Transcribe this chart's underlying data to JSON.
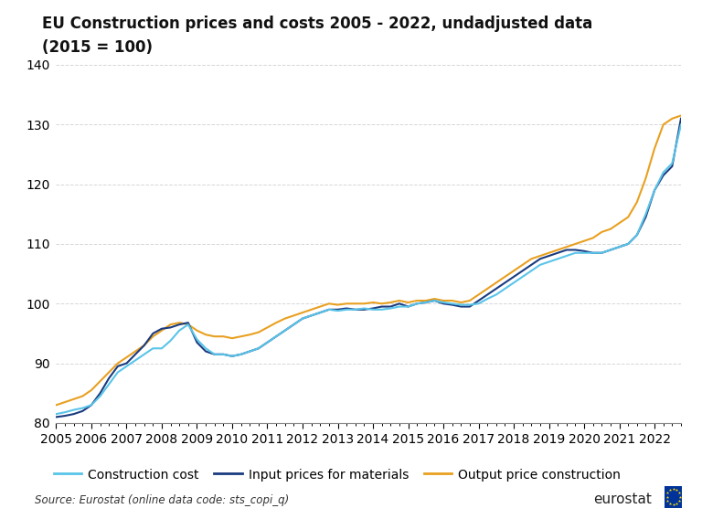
{
  "title_line1": "EU Construction prices and costs 2005 - 2022, undadjusted data",
  "title_line2": "(2015 = 100)",
  "source": "Source: Eurostat (online data code: sts_copi_q)",
  "ylim": [
    80,
    140
  ],
  "yticks": [
    80,
    90,
    100,
    110,
    120,
    130,
    140
  ],
  "construction_cost_color": "#59C4E8",
  "input_prices_color": "#1A3B80",
  "output_price_color": "#E8A020",
  "background_color": "#ffffff",
  "grid_color": "#cccccc",
  "title_fontsize": 12,
  "label_fontsize": 10,
  "tick_fontsize": 10,
  "legend_labels": [
    "Construction cost",
    "Input prices for materials",
    "Output price construction"
  ],
  "x_years": [
    2005,
    2006,
    2007,
    2008,
    2009,
    2010,
    2011,
    2012,
    2013,
    2014,
    2015,
    2016,
    2017,
    2018,
    2019,
    2020,
    2021,
    2022
  ],
  "construction_cost_q": [
    81.5,
    81.8,
    82.2,
    82.5,
    83.0,
    84.5,
    86.5,
    88.5,
    89.5,
    90.5,
    91.5,
    92.5,
    92.5,
    93.8,
    95.5,
    96.5,
    94.0,
    92.5,
    91.5,
    91.5,
    91.2,
    91.5,
    92.0,
    92.5,
    93.5,
    94.5,
    95.5,
    96.5,
    97.5,
    98.0,
    98.5,
    99.0,
    98.8,
    99.0,
    99.0,
    99.2,
    99.0,
    99.0,
    99.2,
    99.5,
    99.5,
    100.0,
    100.2,
    100.5,
    100.2,
    100.0,
    99.8,
    99.8,
    100.0,
    100.8,
    101.5,
    102.5,
    103.5,
    104.5,
    105.5,
    106.5,
    107.0,
    107.5,
    108.0,
    108.5,
    108.5,
    108.5,
    108.5,
    109.0,
    109.5,
    110.0,
    111.5,
    115.0,
    119.0,
    122.0,
    123.5,
    130.0
  ],
  "input_prices_q": [
    81.0,
    81.2,
    81.5,
    82.0,
    83.0,
    85.0,
    87.5,
    89.5,
    90.0,
    91.5,
    93.0,
    95.0,
    95.8,
    96.0,
    96.5,
    96.8,
    93.5,
    92.0,
    91.5,
    91.5,
    91.2,
    91.5,
    92.0,
    92.5,
    93.5,
    94.5,
    95.5,
    96.5,
    97.5,
    98.0,
    98.5,
    99.0,
    99.0,
    99.2,
    99.0,
    99.0,
    99.2,
    99.5,
    99.5,
    100.0,
    99.5,
    100.0,
    100.2,
    100.5,
    100.0,
    99.8,
    99.5,
    99.5,
    100.5,
    101.5,
    102.5,
    103.5,
    104.5,
    105.5,
    106.5,
    107.5,
    108.0,
    108.5,
    109.0,
    109.0,
    108.8,
    108.5,
    108.5,
    109.0,
    109.5,
    110.0,
    111.5,
    114.5,
    119.0,
    121.5,
    123.0,
    131.0
  ],
  "output_price_q": [
    83.0,
    83.5,
    84.0,
    84.5,
    85.5,
    87.0,
    88.5,
    90.0,
    91.0,
    92.0,
    93.0,
    94.5,
    95.5,
    96.5,
    96.8,
    96.5,
    95.5,
    94.8,
    94.5,
    94.5,
    94.2,
    94.5,
    94.8,
    95.2,
    96.0,
    96.8,
    97.5,
    98.0,
    98.5,
    99.0,
    99.5,
    100.0,
    99.8,
    100.0,
    100.0,
    100.0,
    100.2,
    100.0,
    100.2,
    100.5,
    100.2,
    100.5,
    100.5,
    100.8,
    100.5,
    100.5,
    100.2,
    100.5,
    101.5,
    102.5,
    103.5,
    104.5,
    105.5,
    106.5,
    107.5,
    108.0,
    108.5,
    109.0,
    109.5,
    110.0,
    110.5,
    111.0,
    112.0,
    112.5,
    113.5,
    114.5,
    117.0,
    121.0,
    126.0,
    130.0,
    131.0,
    131.5
  ]
}
